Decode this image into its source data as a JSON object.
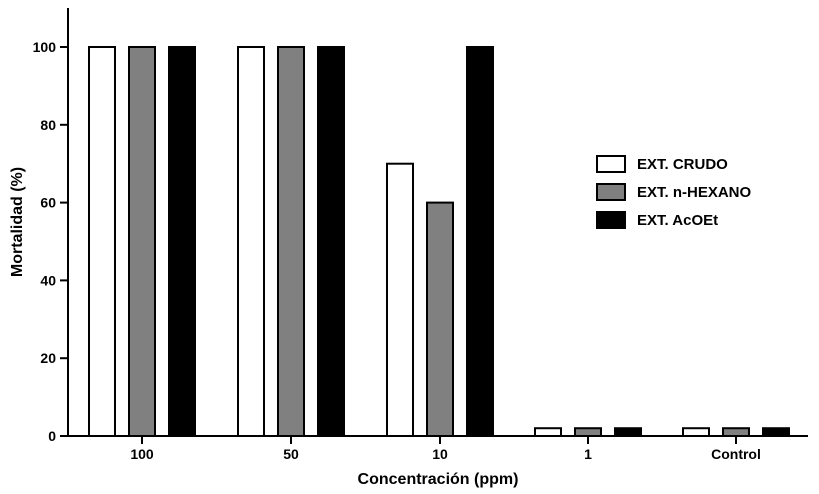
{
  "chart_data": {
    "type": "bar",
    "categories": [
      "100",
      "50",
      "10",
      "1",
      "Control"
    ],
    "series": [
      {
        "name": "EXT. CRUDO",
        "values": [
          100,
          100,
          70,
          2,
          2
        ],
        "color": "#ffffff"
      },
      {
        "name": "EXT. n-HEXANO",
        "values": [
          100,
          100,
          60,
          2,
          2
        ],
        "color": "#808080"
      },
      {
        "name": "EXT. AcOEt",
        "values": [
          100,
          100,
          100,
          2,
          2
        ],
        "color": "#000000"
      }
    ],
    "xlabel": "Concentración (ppm)",
    "ylabel": "Mortalidad (%)",
    "ylim": [
      0,
      100
    ],
    "yticks": [
      0,
      20,
      40,
      60,
      80,
      100
    ],
    "legend_position": "right",
    "grid": false
  }
}
